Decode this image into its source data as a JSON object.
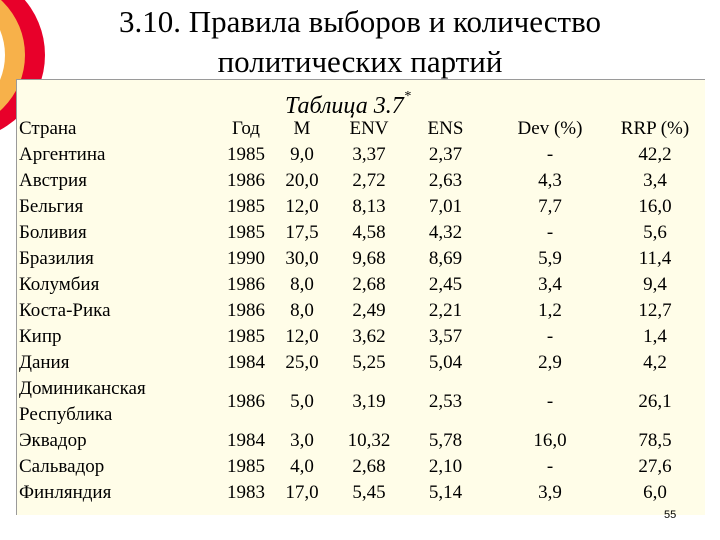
{
  "title_line1": "3.10. Правила выборов и количество",
  "title_line2": "политических партий",
  "caption": "Таблица 3.7",
  "caption_mark": "*",
  "headers": [
    "Страна",
    "Год",
    "M",
    "ENV",
    "ENS",
    "Dev (%)",
    "RRP (%)"
  ],
  "rows": [
    [
      "Аргентина",
      "1985",
      "9,0",
      "3,37",
      "2,37",
      "-",
      "42,2"
    ],
    [
      "Австрия",
      "1986",
      "20,0",
      "2,72",
      "2,63",
      "4,3",
      "3,4"
    ],
    [
      "Бельгия",
      "1985",
      "12,0",
      "8,13",
      "7,01",
      "7,7",
      "16,0"
    ],
    [
      "Боливия",
      "1985",
      "17,5",
      "4,58",
      "4,32",
      "-",
      "5,6"
    ],
    [
      "Бразилия",
      "1990",
      "30,0",
      "9,68",
      "8,69",
      "5,9",
      "11,4"
    ],
    [
      "Колумбия",
      "1986",
      "8,0",
      "2,68",
      "2,45",
      "3,4",
      "9,4"
    ],
    [
      "Коста-Рика",
      "1986",
      "8,0",
      "2,49",
      "2,21",
      "1,2",
      "12,7"
    ],
    [
      "Кипр",
      "1985",
      "12,0",
      "3,62",
      "3,57",
      "-",
      "1,4"
    ],
    [
      "Дания",
      "1984",
      "25,0",
      "5,25",
      "5,04",
      "2,9",
      "4,2"
    ],
    [
      "Доминиканская\nРеспублика",
      "1986",
      "5,0",
      "3,19",
      "2,53",
      "-",
      "26,1"
    ],
    [
      "Эквадор",
      "1984",
      "3,0",
      "10,32",
      "5,78",
      "16,0",
      "78,5"
    ],
    [
      "Сальвадор",
      "1985",
      "4,0",
      "2,68",
      "2,10",
      "-",
      "27,6"
    ],
    [
      "Финляндия",
      "1983",
      "17,0",
      "5,45",
      "5,14",
      "3,9",
      "6,0"
    ]
  ],
  "page_number": "55",
  "colors": {
    "table_background": "#fffde8",
    "accent_red": "#e8002a",
    "accent_orange": "#f7b14a"
  }
}
